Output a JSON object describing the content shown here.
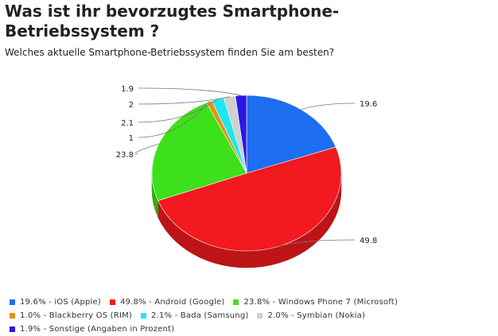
{
  "header": {
    "title_line1": "Was ist ihr bevorzugtes Smartphone-",
    "title_line2": "Betriebssystem ?",
    "subtitle": "Welches aktuelle Smartphone-Betriebssystem finden Sie am besten?"
  },
  "chart_data": {
    "type": "pie",
    "style": "3d",
    "title": "Was ist ihr bevorzugtes Smartphone-Betriebssystem ?",
    "subtitle": "Welches aktuelle Smartphone-Betriebssystem finden Sie am besten?",
    "unit": "%",
    "slices": [
      {
        "name": "iOS (Apple)",
        "value": 19.6,
        "label": "19.6",
        "legend": "19.6% - iOS (Apple)",
        "color": "#1d6ef0"
      },
      {
        "name": "Android (Google)",
        "value": 49.8,
        "label": "49.8",
        "legend": "49.8% - Android (Google)",
        "color": "#f2191f"
      },
      {
        "name": "Windows Phone 7 (Microsoft)",
        "value": 23.8,
        "label": "23.8",
        "legend": "23.8% - Windows Phone 7 (Microsoft)",
        "color": "#3de01a"
      },
      {
        "name": "Blackberry OS (RIM)",
        "value": 1.0,
        "label": "1",
        "legend": "1.0% - Blackberry OS (RIM)",
        "color": "#e8900e"
      },
      {
        "name": "Bada (Samsung)",
        "value": 2.1,
        "label": "2.1",
        "legend": "2.1% - Bada (Samsung)",
        "color": "#1ee8ef"
      },
      {
        "name": "Symbian (Nokia)",
        "value": 2.0,
        "label": "2",
        "legend": "2.0% - Symbian (Nokia)",
        "color": "#cfcfcf"
      },
      {
        "name": "Sonstige",
        "value": 1.9,
        "label": "1.9",
        "legend": "1.9% - Sonstige (Angaben in Prozent)",
        "color": "#2b16e6"
      }
    ],
    "legend_placement": "bottom"
  }
}
